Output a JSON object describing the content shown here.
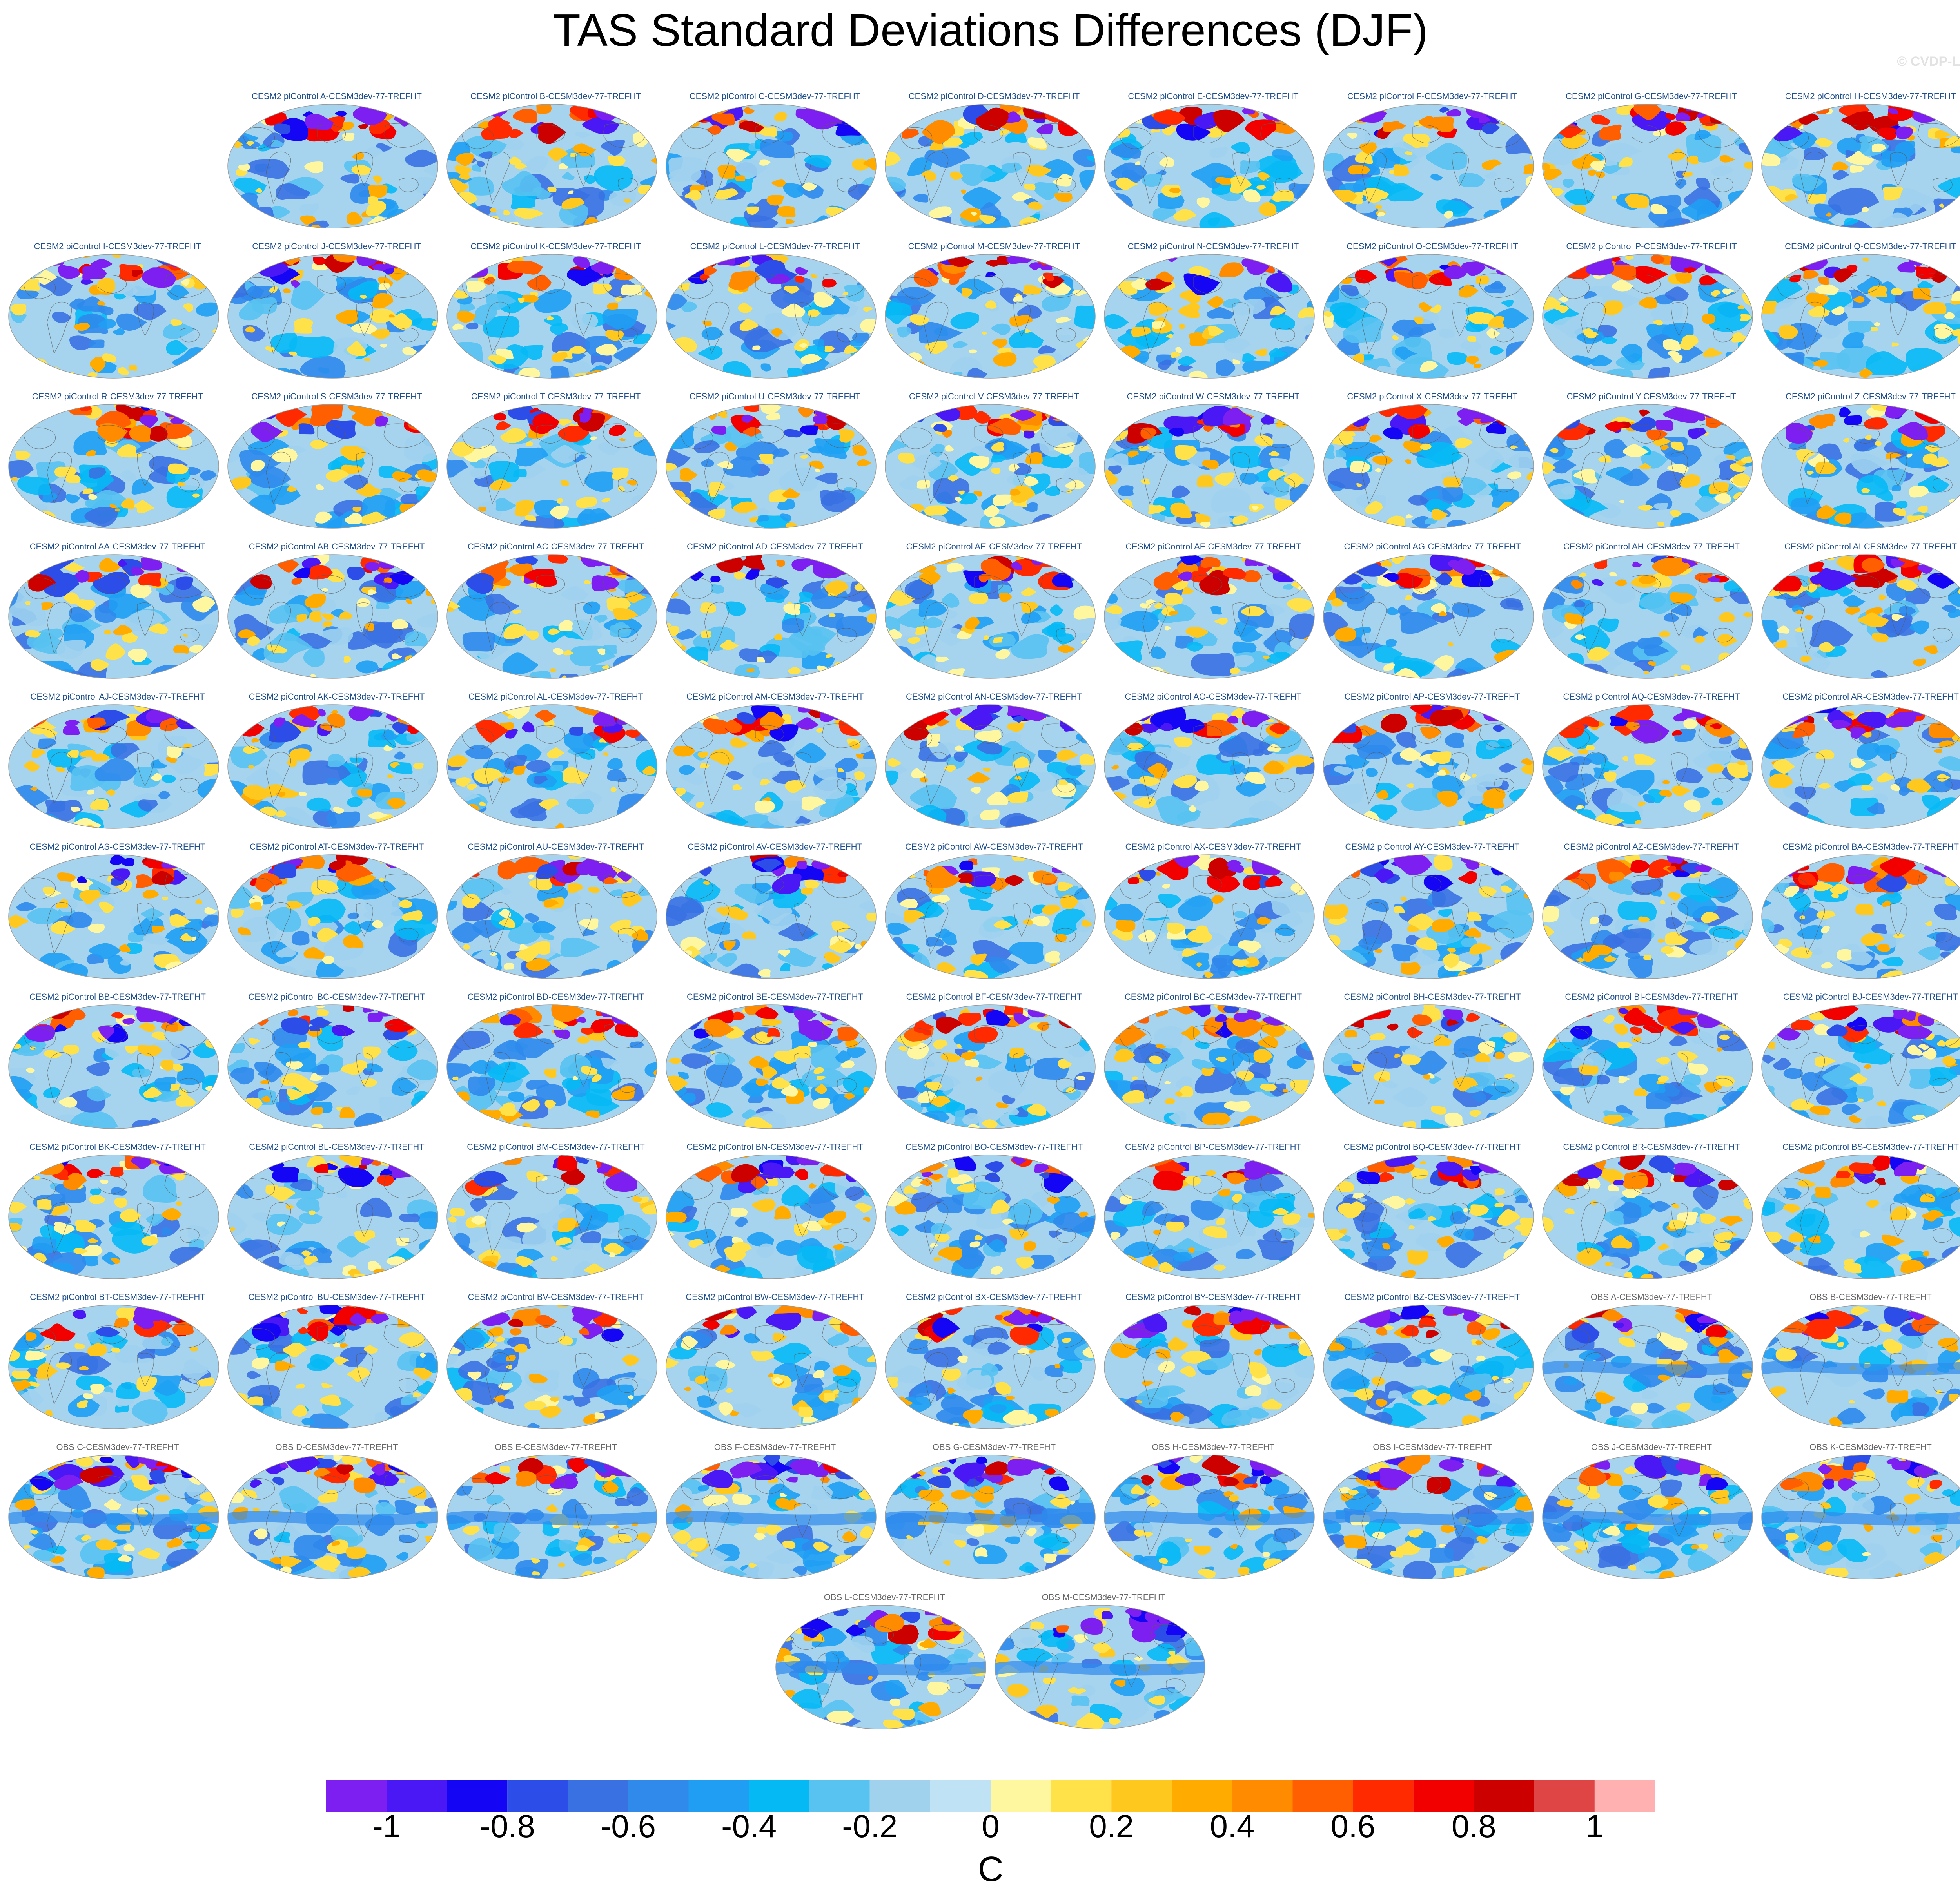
{
  "title": "TAS Standard Deviations Differences (DJF)",
  "watermark": "© CVDP-LE",
  "colors": {
    "model_title": "#1f4f8c",
    "obs_title": "#666666",
    "ocean_base": "#a6d4ee",
    "land_outline": "#5a5a5a"
  },
  "chart_data": {
    "type": "heatmap",
    "panel_grid": {
      "columns": 9,
      "rows": 12
    },
    "panels": [
      {
        "label": "CESM2 piControl A-CESM3dev-77-TREFHT",
        "kind": "model",
        "row": 0,
        "col": 1
      },
      {
        "label": "CESM2 piControl B-CESM3dev-77-TREFHT",
        "kind": "model",
        "row": 0,
        "col": 2
      },
      {
        "label": "CESM2 piControl C-CESM3dev-77-TREFHT",
        "kind": "model",
        "row": 0,
        "col": 3
      },
      {
        "label": "CESM2 piControl D-CESM3dev-77-TREFHT",
        "kind": "model",
        "row": 0,
        "col": 4
      },
      {
        "label": "CESM2 piControl E-CESM3dev-77-TREFHT",
        "kind": "model",
        "row": 0,
        "col": 5
      },
      {
        "label": "CESM2 piControl F-CESM3dev-77-TREFHT",
        "kind": "model",
        "row": 0,
        "col": 6
      },
      {
        "label": "CESM2 piControl G-CESM3dev-77-TREFHT",
        "kind": "model",
        "row": 0,
        "col": 7
      },
      {
        "label": "CESM2 piControl H-CESM3dev-77-TREFHT",
        "kind": "model",
        "row": 0,
        "col": 8
      },
      {
        "label": "CESM2 piControl I-CESM3dev-77-TREFHT",
        "kind": "model",
        "row": 1,
        "col": 0
      },
      {
        "label": "CESM2 piControl J-CESM3dev-77-TREFHT",
        "kind": "model",
        "row": 1,
        "col": 1
      },
      {
        "label": "CESM2 piControl K-CESM3dev-77-TREFHT",
        "kind": "model",
        "row": 1,
        "col": 2
      },
      {
        "label": "CESM2 piControl L-CESM3dev-77-TREFHT",
        "kind": "model",
        "row": 1,
        "col": 3
      },
      {
        "label": "CESM2 piControl M-CESM3dev-77-TREFHT",
        "kind": "model",
        "row": 1,
        "col": 4
      },
      {
        "label": "CESM2 piControl N-CESM3dev-77-TREFHT",
        "kind": "model",
        "row": 1,
        "col": 5
      },
      {
        "label": "CESM2 piControl O-CESM3dev-77-TREFHT",
        "kind": "model",
        "row": 1,
        "col": 6
      },
      {
        "label": "CESM2 piControl P-CESM3dev-77-TREFHT",
        "kind": "model",
        "row": 1,
        "col": 7
      },
      {
        "label": "CESM2 piControl Q-CESM3dev-77-TREFHT",
        "kind": "model",
        "row": 1,
        "col": 8
      },
      {
        "label": "CESM2 piControl R-CESM3dev-77-TREFHT",
        "kind": "model",
        "row": 2,
        "col": 0
      },
      {
        "label": "CESM2 piControl S-CESM3dev-77-TREFHT",
        "kind": "model",
        "row": 2,
        "col": 1
      },
      {
        "label": "CESM2 piControl T-CESM3dev-77-TREFHT",
        "kind": "model",
        "row": 2,
        "col": 2
      },
      {
        "label": "CESM2 piControl U-CESM3dev-77-TREFHT",
        "kind": "model",
        "row": 2,
        "col": 3
      },
      {
        "label": "CESM2 piControl V-CESM3dev-77-TREFHT",
        "kind": "model",
        "row": 2,
        "col": 4
      },
      {
        "label": "CESM2 piControl W-CESM3dev-77-TREFHT",
        "kind": "model",
        "row": 2,
        "col": 5
      },
      {
        "label": "CESM2 piControl X-CESM3dev-77-TREFHT",
        "kind": "model",
        "row": 2,
        "col": 6
      },
      {
        "label": "CESM2 piControl Y-CESM3dev-77-TREFHT",
        "kind": "model",
        "row": 2,
        "col": 7
      },
      {
        "label": "CESM2 piControl Z-CESM3dev-77-TREFHT",
        "kind": "model",
        "row": 2,
        "col": 8
      },
      {
        "label": "CESM2 piControl AA-CESM3dev-77-TREFHT",
        "kind": "model",
        "row": 3,
        "col": 0
      },
      {
        "label": "CESM2 piControl AB-CESM3dev-77-TREFHT",
        "kind": "model",
        "row": 3,
        "col": 1
      },
      {
        "label": "CESM2 piControl AC-CESM3dev-77-TREFHT",
        "kind": "model",
        "row": 3,
        "col": 2
      },
      {
        "label": "CESM2 piControl AD-CESM3dev-77-TREFHT",
        "kind": "model",
        "row": 3,
        "col": 3
      },
      {
        "label": "CESM2 piControl AE-CESM3dev-77-TREFHT",
        "kind": "model",
        "row": 3,
        "col": 4
      },
      {
        "label": "CESM2 piControl AF-CESM3dev-77-TREFHT",
        "kind": "model",
        "row": 3,
        "col": 5
      },
      {
        "label": "CESM2 piControl AG-CESM3dev-77-TREFHT",
        "kind": "model",
        "row": 3,
        "col": 6
      },
      {
        "label": "CESM2 piControl AH-CESM3dev-77-TREFHT",
        "kind": "model",
        "row": 3,
        "col": 7
      },
      {
        "label": "CESM2 piControl AI-CESM3dev-77-TREFHT",
        "kind": "model",
        "row": 3,
        "col": 8
      },
      {
        "label": "CESM2 piControl AJ-CESM3dev-77-TREFHT",
        "kind": "model",
        "row": 4,
        "col": 0
      },
      {
        "label": "CESM2 piControl AK-CESM3dev-77-TREFHT",
        "kind": "model",
        "row": 4,
        "col": 1
      },
      {
        "label": "CESM2 piControl AL-CESM3dev-77-TREFHT",
        "kind": "model",
        "row": 4,
        "col": 2
      },
      {
        "label": "CESM2 piControl AM-CESM3dev-77-TREFHT",
        "kind": "model",
        "row": 4,
        "col": 3
      },
      {
        "label": "CESM2 piControl AN-CESM3dev-77-TREFHT",
        "kind": "model",
        "row": 4,
        "col": 4
      },
      {
        "label": "CESM2 piControl AO-CESM3dev-77-TREFHT",
        "kind": "model",
        "row": 4,
        "col": 5
      },
      {
        "label": "CESM2 piControl AP-CESM3dev-77-TREFHT",
        "kind": "model",
        "row": 4,
        "col": 6
      },
      {
        "label": "CESM2 piControl AQ-CESM3dev-77-TREFHT",
        "kind": "model",
        "row": 4,
        "col": 7
      },
      {
        "label": "CESM2 piControl AR-CESM3dev-77-TREFHT",
        "kind": "model",
        "row": 4,
        "col": 8
      },
      {
        "label": "CESM2 piControl AS-CESM3dev-77-TREFHT",
        "kind": "model",
        "row": 5,
        "col": 0
      },
      {
        "label": "CESM2 piControl AT-CESM3dev-77-TREFHT",
        "kind": "model",
        "row": 5,
        "col": 1
      },
      {
        "label": "CESM2 piControl AU-CESM3dev-77-TREFHT",
        "kind": "model",
        "row": 5,
        "col": 2
      },
      {
        "label": "CESM2 piControl AV-CESM3dev-77-TREFHT",
        "kind": "model",
        "row": 5,
        "col": 3
      },
      {
        "label": "CESM2 piControl AW-CESM3dev-77-TREFHT",
        "kind": "model",
        "row": 5,
        "col": 4
      },
      {
        "label": "CESM2 piControl AX-CESM3dev-77-TREFHT",
        "kind": "model",
        "row": 5,
        "col": 5
      },
      {
        "label": "CESM2 piControl AY-CESM3dev-77-TREFHT",
        "kind": "model",
        "row": 5,
        "col": 6
      },
      {
        "label": "CESM2 piControl AZ-CESM3dev-77-TREFHT",
        "kind": "model",
        "row": 5,
        "col": 7
      },
      {
        "label": "CESM2 piControl BA-CESM3dev-77-TREFHT",
        "kind": "model",
        "row": 5,
        "col": 8
      },
      {
        "label": "CESM2 piControl BB-CESM3dev-77-TREFHT",
        "kind": "model",
        "row": 6,
        "col": 0
      },
      {
        "label": "CESM2 piControl BC-CESM3dev-77-TREFHT",
        "kind": "model",
        "row": 6,
        "col": 1
      },
      {
        "label": "CESM2 piControl BD-CESM3dev-77-TREFHT",
        "kind": "model",
        "row": 6,
        "col": 2
      },
      {
        "label": "CESM2 piControl BE-CESM3dev-77-TREFHT",
        "kind": "model",
        "row": 6,
        "col": 3
      },
      {
        "label": "CESM2 piControl BF-CESM3dev-77-TREFHT",
        "kind": "model",
        "row": 6,
        "col": 4
      },
      {
        "label": "CESM2 piControl BG-CESM3dev-77-TREFHT",
        "kind": "model",
        "row": 6,
        "col": 5
      },
      {
        "label": "CESM2 piControl BH-CESM3dev-77-TREFHT",
        "kind": "model",
        "row": 6,
        "col": 6
      },
      {
        "label": "CESM2 piControl BI-CESM3dev-77-TREFHT",
        "kind": "model",
        "row": 6,
        "col": 7
      },
      {
        "label": "CESM2 piControl BJ-CESM3dev-77-TREFHT",
        "kind": "model",
        "row": 6,
        "col": 8
      },
      {
        "label": "CESM2 piControl BK-CESM3dev-77-TREFHT",
        "kind": "model",
        "row": 7,
        "col": 0
      },
      {
        "label": "CESM2 piControl BL-CESM3dev-77-TREFHT",
        "kind": "model",
        "row": 7,
        "col": 1
      },
      {
        "label": "CESM2 piControl BM-CESM3dev-77-TREFHT",
        "kind": "model",
        "row": 7,
        "col": 2
      },
      {
        "label": "CESM2 piControl BN-CESM3dev-77-TREFHT",
        "kind": "model",
        "row": 7,
        "col": 3
      },
      {
        "label": "CESM2 piControl BO-CESM3dev-77-TREFHT",
        "kind": "model",
        "row": 7,
        "col": 4
      },
      {
        "label": "CESM2 piControl BP-CESM3dev-77-TREFHT",
        "kind": "model",
        "row": 7,
        "col": 5
      },
      {
        "label": "CESM2 piControl BQ-CESM3dev-77-TREFHT",
        "kind": "model",
        "row": 7,
        "col": 6
      },
      {
        "label": "CESM2 piControl BR-CESM3dev-77-TREFHT",
        "kind": "model",
        "row": 7,
        "col": 7
      },
      {
        "label": "CESM2 piControl BS-CESM3dev-77-TREFHT",
        "kind": "model",
        "row": 7,
        "col": 8
      },
      {
        "label": "CESM2 piControl BT-CESM3dev-77-TREFHT",
        "kind": "model",
        "row": 8,
        "col": 0
      },
      {
        "label": "CESM2 piControl BU-CESM3dev-77-TREFHT",
        "kind": "model",
        "row": 8,
        "col": 1
      },
      {
        "label": "CESM2 piControl BV-CESM3dev-77-TREFHT",
        "kind": "model",
        "row": 8,
        "col": 2
      },
      {
        "label": "CESM2 piControl BW-CESM3dev-77-TREFHT",
        "kind": "model",
        "row": 8,
        "col": 3
      },
      {
        "label": "CESM2 piControl BX-CESM3dev-77-TREFHT",
        "kind": "model",
        "row": 8,
        "col": 4
      },
      {
        "label": "CESM2 piControl BY-CESM3dev-77-TREFHT",
        "kind": "model",
        "row": 8,
        "col": 5
      },
      {
        "label": "CESM2 piControl BZ-CESM3dev-77-TREFHT",
        "kind": "model",
        "row": 8,
        "col": 6
      },
      {
        "label": "OBS A-CESM3dev-77-TREFHT",
        "kind": "obs",
        "row": 8,
        "col": 7
      },
      {
        "label": "OBS B-CESM3dev-77-TREFHT",
        "kind": "obs",
        "row": 8,
        "col": 8
      },
      {
        "label": "OBS C-CESM3dev-77-TREFHT",
        "kind": "obs",
        "row": 9,
        "col": 0
      },
      {
        "label": "OBS D-CESM3dev-77-TREFHT",
        "kind": "obs",
        "row": 9,
        "col": 1
      },
      {
        "label": "OBS E-CESM3dev-77-TREFHT",
        "kind": "obs",
        "row": 9,
        "col": 2
      },
      {
        "label": "OBS F-CESM3dev-77-TREFHT",
        "kind": "obs",
        "row": 9,
        "col": 3
      },
      {
        "label": "OBS G-CESM3dev-77-TREFHT",
        "kind": "obs",
        "row": 9,
        "col": 4
      },
      {
        "label": "OBS H-CESM3dev-77-TREFHT",
        "kind": "obs",
        "row": 9,
        "col": 5
      },
      {
        "label": "OBS I-CESM3dev-77-TREFHT",
        "kind": "obs",
        "row": 9,
        "col": 6
      },
      {
        "label": "OBS J-CESM3dev-77-TREFHT",
        "kind": "obs",
        "row": 9,
        "col": 7
      },
      {
        "label": "OBS K-CESM3dev-77-TREFHT",
        "kind": "obs",
        "row": 9,
        "col": 8
      },
      {
        "label": "OBS L-CESM3dev-77-TREFHT",
        "kind": "obs",
        "row": 10,
        "col": 3.5
      },
      {
        "label": "OBS M-CESM3dev-77-TREFHT",
        "kind": "obs",
        "row": 10,
        "col": 4.5
      }
    ],
    "colorbar": {
      "levels": [
        -1.1,
        -1.0,
        -0.9,
        -0.8,
        -0.7,
        -0.6,
        -0.5,
        -0.4,
        -0.3,
        -0.2,
        -0.1,
        0,
        0.1,
        0.2,
        0.3,
        0.4,
        0.5,
        0.6,
        0.7,
        0.8,
        0.9,
        1.0,
        1.1
      ],
      "colors": [
        "#7d1ff0",
        "#4a17f5",
        "#1405f4",
        "#2c4de7",
        "#3a71e2",
        "#2f8aec",
        "#1f9ef4",
        "#05b9f5",
        "#58c2f1",
        "#a0d2ee",
        "#bfe3f5",
        "#fff7a0",
        "#ffe24a",
        "#ffc81f",
        "#ffab00",
        "#ff8c00",
        "#ff5f00",
        "#ff2a00",
        "#f20000",
        "#cd0000",
        "#e04545",
        "#ffb1b1"
      ],
      "tick_labels": [
        "-1",
        "-0.8",
        "-0.6",
        "-0.4",
        "-0.2",
        "0",
        "0.2",
        "0.4",
        "0.6",
        "0.8",
        "1"
      ],
      "tick_values": [
        -1.0,
        -0.8,
        -0.6,
        -0.4,
        -0.2,
        0,
        0.2,
        0.4,
        0.6,
        0.8,
        1.0
      ],
      "units": "C"
    }
  }
}
